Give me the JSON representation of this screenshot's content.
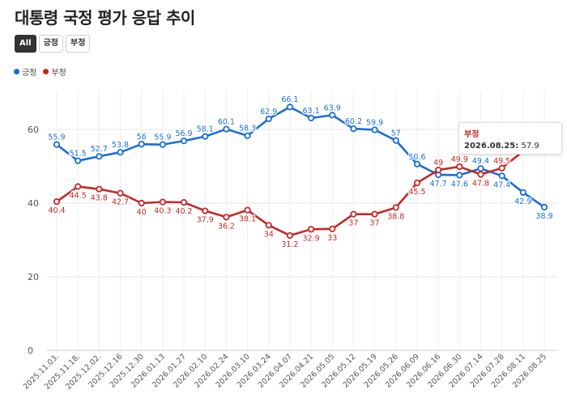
{
  "title": "대통령 국정 평가 응답 추이",
  "filters": [
    {
      "label": "All",
      "active": true
    },
    {
      "label": "긍정",
      "active": false
    },
    {
      "label": "부정",
      "active": false
    }
  ],
  "colors": {
    "positive": "#1a6ed8",
    "negative": "#c62828"
  },
  "tooltip": {
    "series": "부정",
    "date": "2026.08.25:",
    "value": "57.9"
  },
  "chart_data": {
    "type": "line",
    "categories": [
      "2025.11.03.",
      "2025.11.18.",
      "2025.12.02.",
      "2025.12.16",
      "2025.12.30",
      "2026.01.13",
      "2026.01.27",
      "2026.02.10",
      "2026.02.24",
      "2026.03.10",
      "2026.03.24",
      "2026.04.07",
      "2026.04.21",
      "2026.05.05",
      "2026.05.12",
      "2026.05.19",
      "2026.05.26",
      "2026.06.09",
      "2026.06.16",
      "2026.06.30",
      "2026.07.14",
      "2026.07.28",
      "2026.08.11",
      "2026.08.25"
    ],
    "series": [
      {
        "name": "긍정",
        "color": "#1a6ed8",
        "values": [
          55.9,
          51.5,
          52.7,
          53.8,
          56,
          55.9,
          56.9,
          58.1,
          60.1,
          58.3,
          62.9,
          66.1,
          63.1,
          63.9,
          60.2,
          59.9,
          57,
          50.6,
          47.7,
          47.6,
          49.4,
          47.4,
          42.9,
          38.9
        ]
      },
      {
        "name": "부정",
        "color": "#c62828",
        "values": [
          40.4,
          44.5,
          43.8,
          42.7,
          40,
          40.3,
          40.2,
          37.9,
          36.2,
          38.1,
          34,
          31.2,
          32.9,
          33,
          37,
          37,
          38.8,
          45.5,
          49,
          49.9,
          47.8,
          49.5,
          54.1,
          57.9
        ]
      }
    ],
    "yticks": [
      0,
      20,
      40,
      60
    ],
    "ylim": [
      0,
      70
    ],
    "grid": true,
    "legend_position": "top-left"
  }
}
